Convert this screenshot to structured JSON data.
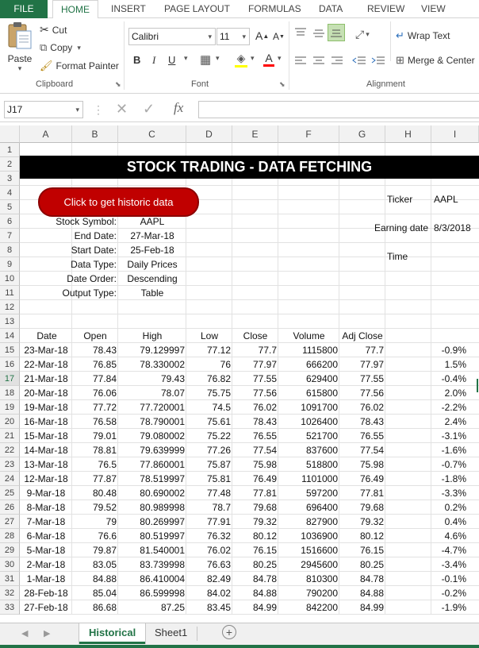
{
  "ribbon_tabs": [
    "FILE",
    "HOME",
    "INSERT",
    "PAGE LAYOUT",
    "FORMULAS",
    "DATA",
    "REVIEW",
    "VIEW"
  ],
  "active_tab": "HOME",
  "clipboard": {
    "paste": "Paste",
    "cut": "Cut",
    "copy": "Copy",
    "format_painter": "Format Painter",
    "label": "Clipboard"
  },
  "font": {
    "name": "Calibri",
    "size": "11",
    "bold": "B",
    "italic": "I",
    "underline": "U",
    "grow": "A",
    "shrink": "A",
    "font_color": "A",
    "label": "Font"
  },
  "alignment": {
    "wrap_text": "Wrap Text",
    "merge": "Merge & Center",
    "label": "Alignment"
  },
  "formula_bar": {
    "name_box": "J17",
    "fx": "fx",
    "formula": ""
  },
  "columns": [
    "A",
    "B",
    "C",
    "D",
    "E",
    "F",
    "G",
    "H",
    "I"
  ],
  "rows": [
    "1",
    "2",
    "3",
    "4",
    "5",
    "6",
    "7",
    "8",
    "9",
    "10",
    "11",
    "12",
    "13",
    "14",
    "15",
    "16",
    "17",
    "18",
    "19",
    "20",
    "21",
    "22",
    "23",
    "24",
    "25",
    "26",
    "27",
    "28",
    "29",
    "30",
    "31",
    "32",
    "33"
  ],
  "title": "STOCK TRADING - DATA FETCHING",
  "button_label": "Click to get historic data",
  "params": [
    {
      "label": "Stock Symbol:",
      "value": "AAPL"
    },
    {
      "label": "End Date:",
      "value": "27-Mar-18"
    },
    {
      "label": "Start Date:",
      "value": "25-Feb-18"
    },
    {
      "label": "Data Type:",
      "value": "Daily Prices"
    },
    {
      "label": "Date Order:",
      "value": "Descending"
    },
    {
      "label": "Output Type:",
      "value": "Table"
    }
  ],
  "side_info": {
    "ticker_label": "Ticker",
    "ticker_value": "AAPL",
    "earning_label": "Earning date",
    "earning_value": "8/3/2018",
    "time_label": "Time"
  },
  "table_headers": [
    "Date",
    "Open",
    "High",
    "Low",
    "Close",
    "Volume",
    "Adj Close"
  ],
  "table_rows": [
    [
      "23-Mar-18",
      "78.43",
      "79.129997",
      "77.12",
      "77.7",
      "1115800",
      "77.7",
      "-0.9%"
    ],
    [
      "22-Mar-18",
      "76.85",
      "78.330002",
      "76",
      "77.97",
      "666200",
      "77.97",
      "1.5%"
    ],
    [
      "21-Mar-18",
      "77.84",
      "79.43",
      "76.82",
      "77.55",
      "629400",
      "77.55",
      "-0.4%"
    ],
    [
      "20-Mar-18",
      "76.06",
      "78.07",
      "75.75",
      "77.56",
      "615800",
      "77.56",
      "2.0%"
    ],
    [
      "19-Mar-18",
      "77.72",
      "77.720001",
      "74.5",
      "76.02",
      "1091700",
      "76.02",
      "-2.2%"
    ],
    [
      "16-Mar-18",
      "76.58",
      "78.790001",
      "75.61",
      "78.43",
      "1026400",
      "78.43",
      "2.4%"
    ],
    [
      "15-Mar-18",
      "79.01",
      "79.080002",
      "75.22",
      "76.55",
      "521700",
      "76.55",
      "-3.1%"
    ],
    [
      "14-Mar-18",
      "78.81",
      "79.639999",
      "77.26",
      "77.54",
      "837600",
      "77.54",
      "-1.6%"
    ],
    [
      "13-Mar-18",
      "76.5",
      "77.860001",
      "75.87",
      "75.98",
      "518800",
      "75.98",
      "-0.7%"
    ],
    [
      "12-Mar-18",
      "77.87",
      "78.519997",
      "75.81",
      "76.49",
      "1101000",
      "76.49",
      "-1.8%"
    ],
    [
      "9-Mar-18",
      "80.48",
      "80.690002",
      "77.48",
      "77.81",
      "597200",
      "77.81",
      "-3.3%"
    ],
    [
      "8-Mar-18",
      "79.52",
      "80.989998",
      "78.7",
      "79.68",
      "696400",
      "79.68",
      "0.2%"
    ],
    [
      "7-Mar-18",
      "79",
      "80.269997",
      "77.91",
      "79.32",
      "827900",
      "79.32",
      "0.4%"
    ],
    [
      "6-Mar-18",
      "76.6",
      "80.519997",
      "76.32",
      "80.12",
      "1036900",
      "80.12",
      "4.6%"
    ],
    [
      "5-Mar-18",
      "79.87",
      "81.540001",
      "76.02",
      "76.15",
      "1516600",
      "76.15",
      "-4.7%"
    ],
    [
      "2-Mar-18",
      "83.05",
      "83.739998",
      "76.63",
      "80.25",
      "2945600",
      "80.25",
      "-3.4%"
    ],
    [
      "1-Mar-18",
      "84.88",
      "86.410004",
      "82.49",
      "84.78",
      "810300",
      "84.78",
      "-0.1%"
    ],
    [
      "28-Feb-18",
      "85.04",
      "86.599998",
      "84.02",
      "84.88",
      "790200",
      "84.88",
      "-0.2%"
    ],
    [
      "27-Feb-18",
      "86.68",
      "87.25",
      "83.45",
      "84.99",
      "842200",
      "84.99",
      "-1.9%"
    ]
  ],
  "sheet_tabs": [
    "Historical",
    "Sheet1"
  ],
  "active_sheet": "Historical",
  "colors": {
    "excel_green": "#217346",
    "button_red": "#c00000",
    "title_bg": "#000000"
  }
}
